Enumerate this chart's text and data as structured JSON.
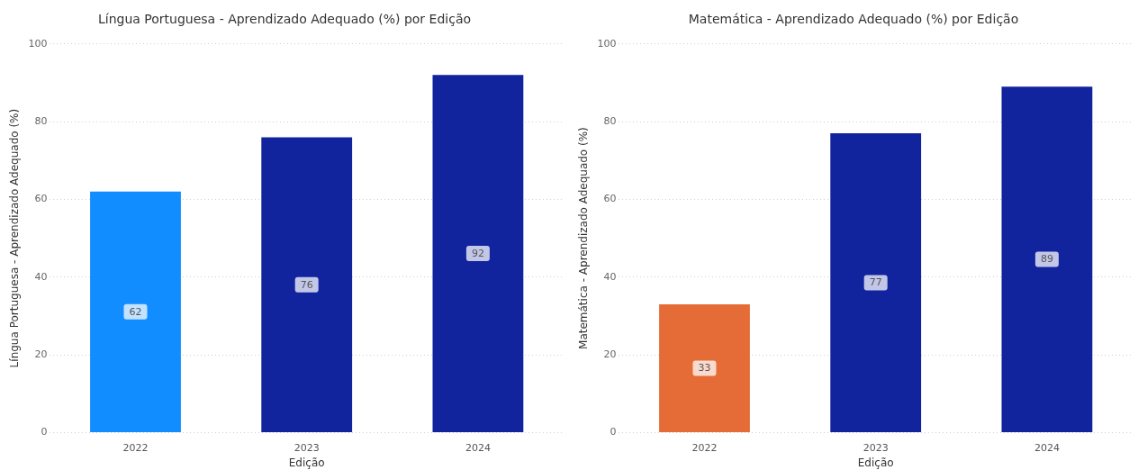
{
  "chart_data": [
    {
      "type": "bar",
      "title": "Língua Portuguesa - Aprendizado Adequado (%) por Edição",
      "xlabel": "Edição",
      "ylabel": "Língua Portuguesa - Aprendizado Adequado (%)",
      "categories": [
        "2022",
        "2023",
        "2024"
      ],
      "values": [
        62,
        76,
        92
      ],
      "colors": [
        "#118dff",
        "#12239e",
        "#12239e"
      ],
      "ylim": [
        0,
        100
      ],
      "yticks": [
        0,
        20,
        40,
        60,
        80,
        100
      ],
      "grid": "y",
      "data_labels": true
    },
    {
      "type": "bar",
      "title": "Matemática - Aprendizado Adequado (%) por Edição",
      "xlabel": "Edição",
      "ylabel": "Matemática - Aprendizado Adequado (%)",
      "categories": [
        "2022",
        "2023",
        "2024"
      ],
      "values": [
        33,
        77,
        89
      ],
      "colors": [
        "#e66c37",
        "#12239e",
        "#12239e"
      ],
      "ylim": [
        0,
        100
      ],
      "yticks": [
        0,
        20,
        40,
        60,
        80,
        100
      ],
      "grid": "y",
      "data_labels": true
    }
  ]
}
